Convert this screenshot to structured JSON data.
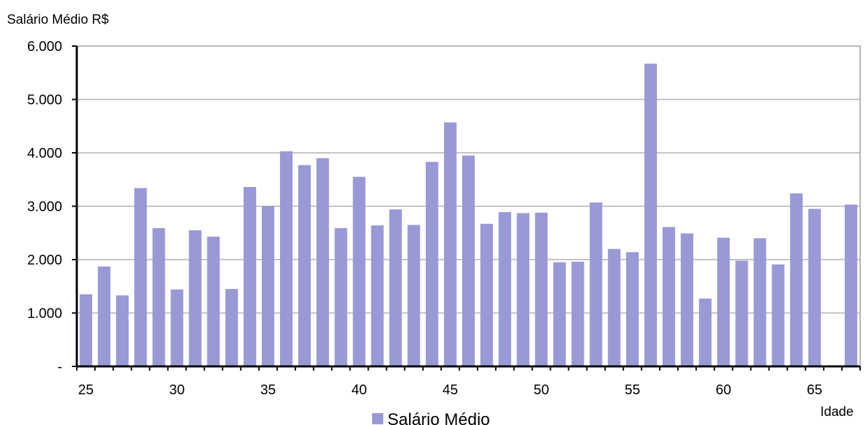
{
  "chart_data": {
    "type": "bar",
    "ylabel": "Salário Médio R$",
    "xlabel": "Idade",
    "series": [
      {
        "name": "Salário Médio",
        "color": "#9999d6",
        "x": [
          25,
          26,
          27,
          28,
          29,
          30,
          31,
          32,
          33,
          34,
          35,
          36,
          37,
          38,
          39,
          40,
          41,
          42,
          43,
          44,
          45,
          46,
          47,
          48,
          49,
          50,
          51,
          52,
          53,
          54,
          55,
          56,
          57,
          58,
          59,
          60,
          61,
          62,
          63,
          64,
          65,
          66,
          67
        ],
        "values": [
          1350,
          1870,
          1330,
          3340,
          2590,
          1440,
          2550,
          2430,
          1450,
          3360,
          3000,
          4030,
          3770,
          3900,
          2590,
          3550,
          2640,
          2940,
          2650,
          3830,
          4570,
          3950,
          2670,
          2890,
          2870,
          2880,
          1950,
          1960,
          3070,
          2200,
          2140,
          5670,
          2610,
          2490,
          1270,
          2410,
          1980,
          2400,
          1910,
          3240,
          2950,
          null,
          3030
        ]
      }
    ],
    "x_ticks": [
      "25",
      "30",
      "35",
      "40",
      "45",
      "50",
      "55",
      "60",
      "65"
    ],
    "y_ticks": [
      "-",
      "1.000",
      "2.000",
      "3.000",
      "4.000",
      "5.000",
      "6.000"
    ],
    "ylim": [
      0,
      6000
    ],
    "grid": true,
    "legend_position": "bottom"
  }
}
